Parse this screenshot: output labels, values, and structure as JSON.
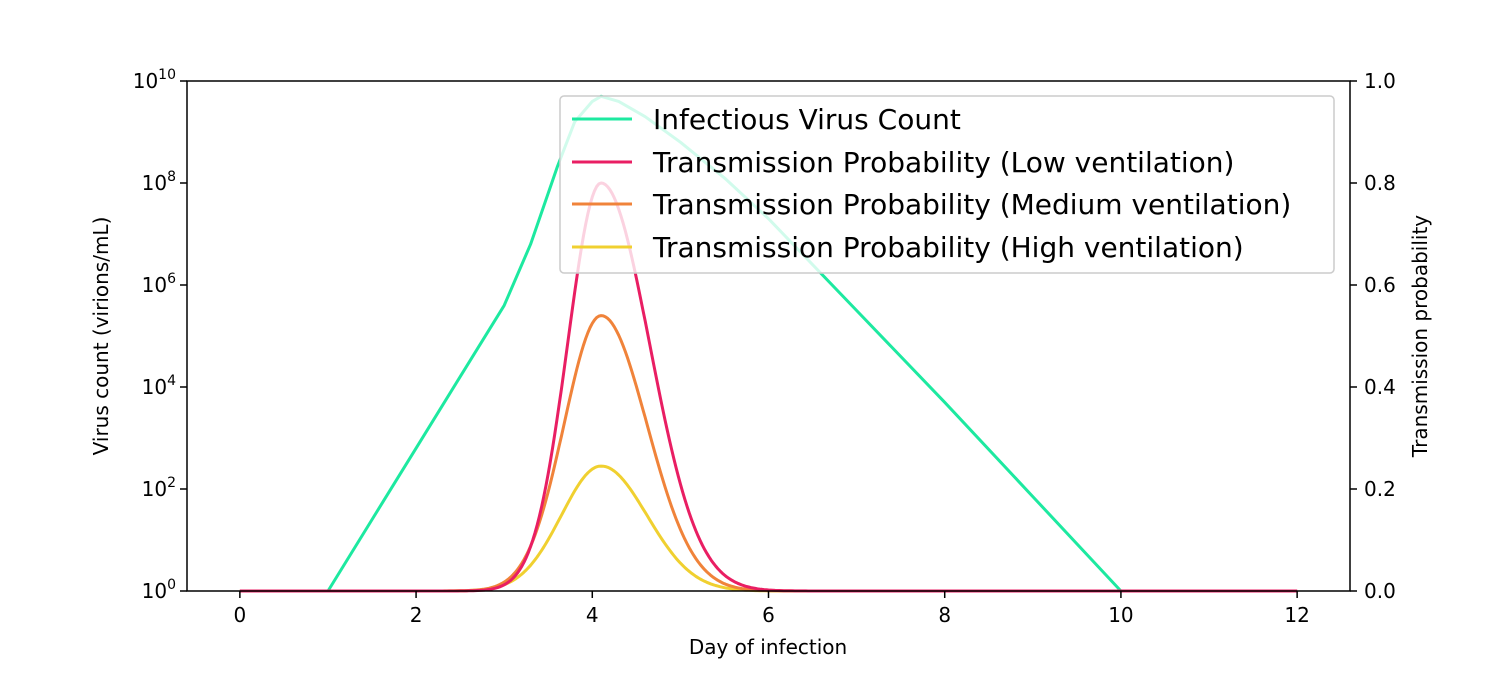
{
  "chart_data": {
    "type": "line",
    "xlabel": "Day of infection",
    "ylabel": "Virus count (virions/mL)",
    "y2label": "Transmission probability",
    "xlim": [
      -0.6,
      12.6
    ],
    "xticks": [
      0,
      2,
      4,
      6,
      8,
      10,
      12
    ],
    "ylim_log10": [
      0,
      10
    ],
    "yscale": "log",
    "yticks": [
      {
        "base": "10",
        "exp": "0",
        "value_log10": 0
      },
      {
        "base": "10",
        "exp": "2",
        "value_log10": 2
      },
      {
        "base": "10",
        "exp": "4",
        "value_log10": 4
      },
      {
        "base": "10",
        "exp": "6",
        "value_log10": 6
      },
      {
        "base": "10",
        "exp": "8",
        "value_log10": 8
      },
      {
        "base": "10",
        "exp": "10",
        "value_log10": 10
      }
    ],
    "y2lim": [
      0,
      1
    ],
    "y2ticks": [
      "0.0",
      "0.2",
      "0.4",
      "0.6",
      "0.8",
      "1.0"
    ],
    "grid": false,
    "legend_position": "top-right",
    "series": [
      {
        "name": "Infectious Virus Count",
        "axis": "left-log",
        "color": "#1de9a0",
        "x": [
          1.0,
          1.5,
          2.0,
          2.5,
          3.0,
          3.3,
          3.6,
          3.8,
          4.0,
          4.1,
          4.3,
          4.6,
          5.0,
          5.5,
          6.0,
          7.0,
          8.0,
          9.0,
          10.0
        ],
        "y_log10": [
          0,
          1.4,
          2.8,
          4.2,
          5.6,
          6.8,
          8.3,
          9.2,
          9.6,
          9.7,
          9.6,
          9.3,
          8.8,
          8.1,
          7.3,
          5.5,
          3.7,
          1.85,
          0
        ]
      },
      {
        "name": "Transmission Probability (Low ventilation)",
        "axis": "right",
        "color": "#e91e63",
        "peak_x": 4.1,
        "peak_y": 0.8,
        "sigma_left": 0.38,
        "sigma_right": 0.55
      },
      {
        "name": "Transmission Probability (Medium ventilation)",
        "axis": "right",
        "color": "#f0833a",
        "peak_x": 4.1,
        "peak_y": 0.54,
        "sigma_left": 0.42,
        "sigma_right": 0.52
      },
      {
        "name": "Transmission Probability (High ventilation)",
        "axis": "right",
        "color": "#f0d030",
        "peak_x": 4.1,
        "peak_y": 0.245,
        "sigma_left": 0.45,
        "sigma_right": 0.52
      }
    ],
    "x_range": [
      0,
      12
    ]
  }
}
